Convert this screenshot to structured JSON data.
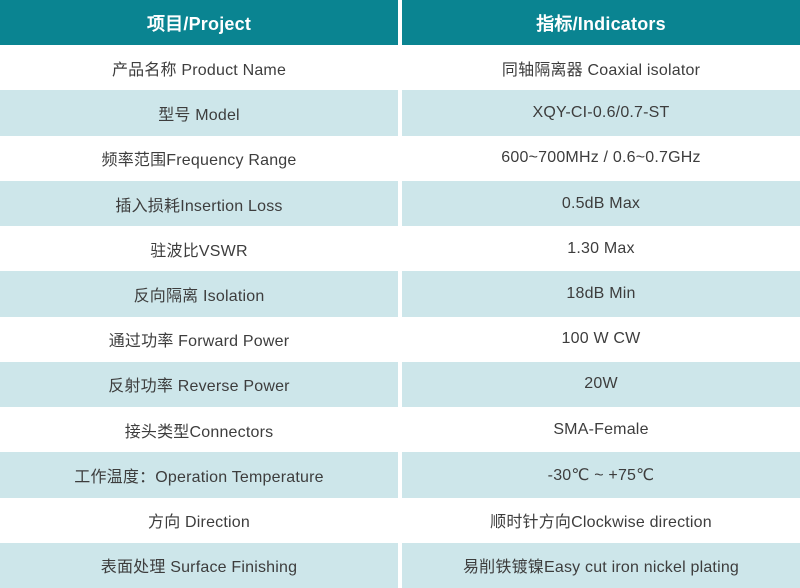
{
  "table": {
    "header": {
      "project": "项目/Project",
      "indicators": "指标/Indicators"
    },
    "rows": [
      {
        "project": "产品名称 Product Name",
        "indicator": "同轴隔离器 Coaxial isolator"
      },
      {
        "project": "型号 Model",
        "indicator": "XQY-CI-0.6/0.7-ST"
      },
      {
        "project": "频率范围Frequency Range",
        "indicator": "600~700MHz / 0.6~0.7GHz"
      },
      {
        "project": "插入损耗Insertion Loss",
        "indicator": "0.5dB Max"
      },
      {
        "project": "驻波比VSWR",
        "indicator": "1.30 Max"
      },
      {
        "project": "反向隔离 Isolation",
        "indicator": "18dB Min"
      },
      {
        "project": "通过功率 Forward Power",
        "indicator": "100 W CW"
      },
      {
        "project": "反射功率 Reverse Power",
        "indicator": "20W"
      },
      {
        "project": "接头类型Connectors",
        "indicator": "SMA-Female"
      },
      {
        "project": "工作温度：Operation Temperature",
        "indicator": "-30℃ ~ +75℃"
      },
      {
        "project": "方向 Direction",
        "indicator": "顺时针方向Clockwise direction"
      },
      {
        "project": "表面处理 Surface Finishing",
        "indicator": "易削铁镀镍Easy cut iron nickel plating"
      }
    ],
    "colors": {
      "header_bg": "#0A8491",
      "header_text": "#FFFFFF",
      "row_bg": "#FFFFFF",
      "row_alt_bg": "#CDE6EA",
      "body_text": "#3D3D3D"
    }
  },
  "chart_data": {
    "type": "table",
    "title": "",
    "columns": [
      "项目/Project",
      "指标/Indicators"
    ],
    "rows": [
      [
        "产品名称 Product Name",
        "同轴隔离器 Coaxial isolator"
      ],
      [
        "型号 Model",
        "XQY-CI-0.6/0.7-ST"
      ],
      [
        "频率范围Frequency Range",
        "600~700MHz / 0.6~0.7GHz"
      ],
      [
        "插入损耗Insertion Loss",
        "0.5dB Max"
      ],
      [
        "驻波比VSWR",
        "1.30 Max"
      ],
      [
        "反向隔离 Isolation",
        "18dB Min"
      ],
      [
        "通过功率 Forward Power",
        "100 W CW"
      ],
      [
        "反射功率 Reverse Power",
        "20W"
      ],
      [
        "接头类型Connectors",
        "SMA-Female"
      ],
      [
        "工作温度：Operation Temperature",
        "-30℃ ~ +75℃"
      ],
      [
        "方向 Direction",
        "顺时针方向Clockwise direction"
      ],
      [
        "表面处理 Surface Finishing",
        "易削铁镀镍Easy cut iron nickel plating"
      ]
    ],
    "layout": {
      "header_style": "teal background, white bold text",
      "row_striping": "white / pale teal alternating starting with white",
      "column_split": "50/50 with 4px white divider"
    }
  }
}
